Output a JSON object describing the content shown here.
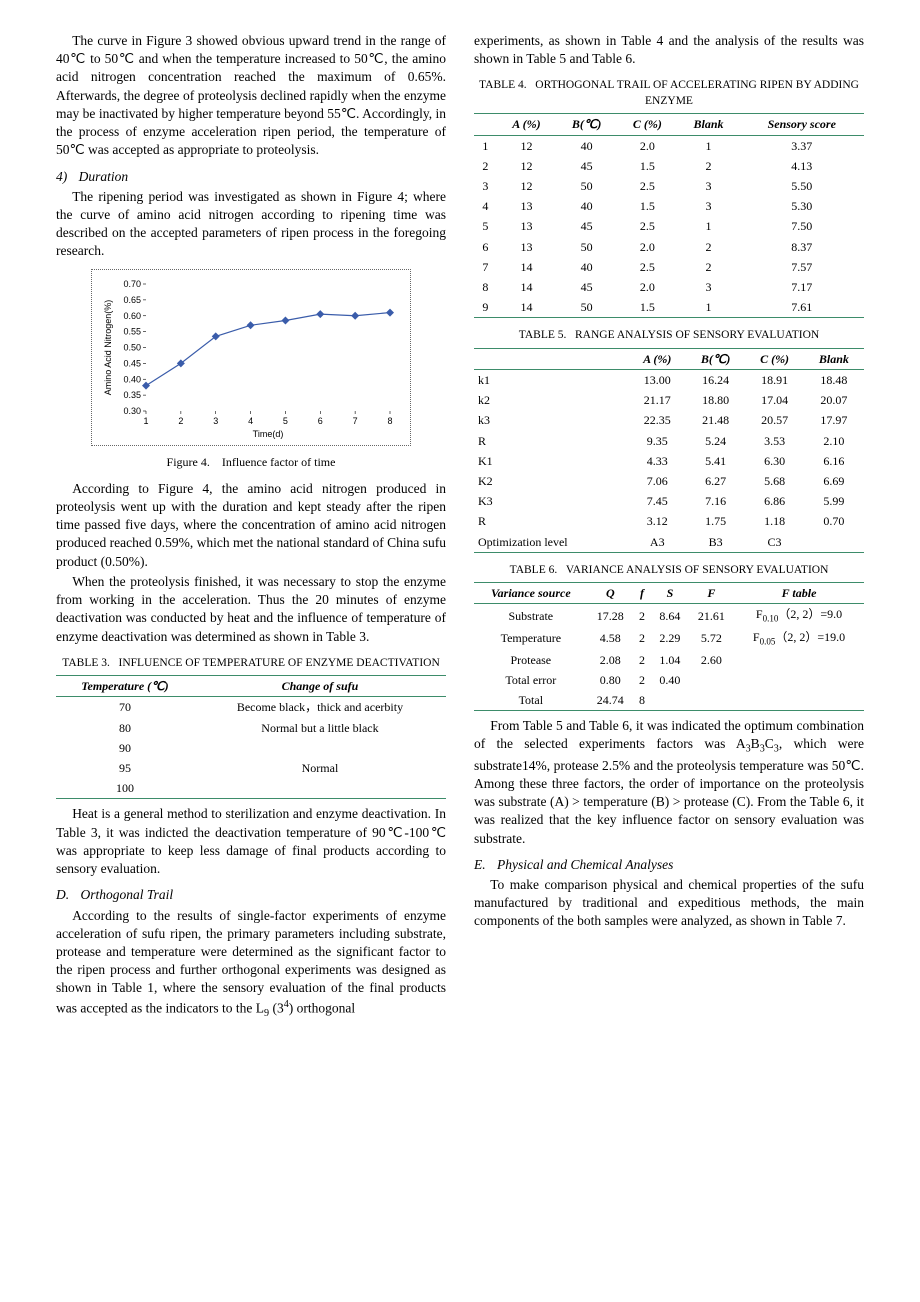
{
  "left": {
    "para1": "The curve in Figure 3 showed obvious upward trend in the range of 40℃ to 50℃ and when the temperature increased to 50℃, the amino acid nitrogen concentration reached the maximum of 0.65%. Afterwards, the degree of proteolysis declined rapidly when the enzyme may be inactivated by higher temperature beyond 55℃. Accordingly, in the process of enzyme acceleration ripen period, the temperature of 50℃ was accepted as appropriate to proteolysis.",
    "h4_num": "4)",
    "h4_text": "Duration",
    "para2": "The ripening period was investigated as shown in Figure 4; where the curve of amino acid nitrogen according to ripening time was described on the accepted parameters of ripen process in the foregoing research.",
    "fig4": {
      "type": "line",
      "ylabel": "Amino Acid Nitrogen(%)",
      "xlabel": "Time(d)",
      "ylabel_fontsize": 9,
      "xlabel_fontsize": 9,
      "tick_fontsize": 9,
      "x": [
        1,
        2,
        3,
        4,
        5,
        6,
        7,
        8
      ],
      "y": [
        0.38,
        0.45,
        0.535,
        0.57,
        0.585,
        0.605,
        0.6,
        0.61
      ],
      "xlim": [
        1,
        8
      ],
      "ylim": [
        0.3,
        0.7
      ],
      "ytick_step": 0.05,
      "xtick_step": 1,
      "line_color": "#3a5caa",
      "marker": "diamond",
      "marker_color": "#3a5caa",
      "marker_size": 4,
      "line_width": 1.2,
      "background_color": "#ffffff",
      "border_color": "#666666",
      "border_style": "dotted"
    },
    "fig4_caption_label": "Figure 4.",
    "fig4_caption_text": "Influence factor of time",
    "para3": "According to Figure 4, the amino acid nitrogen produced in proteolysis went up with the duration and kept steady after the ripen time passed five days, where the concentration of amino acid nitrogen produced reached 0.59%, which met the national standard of China sufu product (0.50%).",
    "para4": "When the proteolysis finished, it was necessary to stop the enzyme from working in the acceleration. Thus the 20 minutes of enzyme deactivation was conducted by heat and the influence of temperature of enzyme deactivation was determined as shown in Table 3.",
    "table3_caption_label": "TABLE 3.",
    "table3_caption_text": "INFLUENCE OF TEMPERATURE OF ENZYME DEACTIVATION",
    "table3": {
      "columns": [
        "Temperature (℃)",
        "Change of sufu"
      ],
      "rows": [
        [
          "70",
          "Become black，thick and acerbity"
        ],
        [
          "80",
          "Normal but a little black"
        ],
        [
          "90",
          ""
        ],
        [
          "95",
          "Normal"
        ],
        [
          "100",
          ""
        ]
      ],
      "border_color": "#3d8c6a"
    },
    "para5": "Heat is a general method to sterilization and enzyme deactivation. In Table 3, it was indicted the deactivation temperature of 90℃-100℃ was appropriate to keep less damage of final products according to sensory evaluation.",
    "hD_letter": "D.",
    "hD_text": "Orthogonal Trail",
    "para6_a": "According to the results of single-factor experiments of enzyme acceleration of sufu ripen, the primary parameters including substrate, protease and temperature were determined as the significant factor to the ripen process and further orthogonal experiments was designed as shown in Table 1, where the sensory evaluation of the final products was accepted as the indicators to the L",
    "para6_sub": "9",
    "para6_b": " (3",
    "para6_sup": "4",
    "para6_c": ") orthogonal"
  },
  "right": {
    "para_top": "experiments, as shown in Table 4 and the analysis of the results was shown in Table 5 and Table 6.",
    "table4_caption_label": "TABLE 4.",
    "table4_caption_text": "ORTHOGONAL TRAIL OF ACCELERATING RIPEN BY ADDING ENZYME",
    "table4": {
      "columns": [
        "",
        "A (%)",
        "B(℃)",
        "C (%)",
        "Blank",
        "Sensory score"
      ],
      "rows": [
        [
          "1",
          "12",
          "40",
          "2.0",
          "1",
          "3.37"
        ],
        [
          "2",
          "12",
          "45",
          "1.5",
          "2",
          "4.13"
        ],
        [
          "3",
          "12",
          "50",
          "2.5",
          "3",
          "5.50"
        ],
        [
          "4",
          "13",
          "40",
          "1.5",
          "3",
          "5.30"
        ],
        [
          "5",
          "13",
          "45",
          "2.5",
          "1",
          "7.50"
        ],
        [
          "6",
          "13",
          "50",
          "2.0",
          "2",
          "8.37"
        ],
        [
          "7",
          "14",
          "40",
          "2.5",
          "2",
          "7.57"
        ],
        [
          "8",
          "14",
          "45",
          "2.0",
          "3",
          "7.17"
        ],
        [
          "9",
          "14",
          "50",
          "1.5",
          "1",
          "7.61"
        ]
      ],
      "border_color": "#3d8c6a"
    },
    "table5_caption_label": "TABLE 5.",
    "table5_caption_text": "RANGE ANALYSIS OF SENSORY EVALUATION",
    "table5": {
      "columns": [
        "",
        "A (%)",
        "B(℃)",
        "C (%)",
        "Blank"
      ],
      "rows": [
        [
          "k1",
          "13.00",
          "16.24",
          "18.91",
          "18.48"
        ],
        [
          "k2",
          "21.17",
          "18.80",
          "17.04",
          "20.07"
        ],
        [
          "k3",
          "22.35",
          "21.48",
          "20.57",
          "17.97"
        ],
        [
          "R",
          "9.35",
          "5.24",
          "3.53",
          "2.10"
        ],
        [
          "K1",
          "4.33",
          "5.41",
          "6.30",
          "6.16"
        ],
        [
          "K2",
          "7.06",
          "6.27",
          "5.68",
          "6.69"
        ],
        [
          "K3",
          "7.45",
          "7.16",
          "6.86",
          "5.99"
        ],
        [
          "R",
          "3.12",
          "1.75",
          "1.18",
          "0.70"
        ],
        [
          "Optimization level",
          "A3",
          "B3",
          "C3",
          ""
        ]
      ],
      "border_color": "#3d8c6a"
    },
    "table6_caption_label": "TABLE 6.",
    "table6_caption_text": "VARIANCE ANALYSIS OF SENSORY EVALUATION",
    "table6": {
      "columns": [
        "Variance source",
        "Q",
        "f",
        "S",
        "F",
        "F table"
      ],
      "rows": [
        [
          "Substrate",
          "17.28",
          "2",
          "8.64",
          "21.61",
          "F0.10（2, 2）=9.0"
        ],
        [
          "Temperature",
          "4.58",
          "2",
          "2.29",
          "5.72",
          "F0.05（2, 2）=19.0"
        ],
        [
          "Protease",
          "2.08",
          "2",
          "1.04",
          "2.60",
          ""
        ],
        [
          "Total error",
          "0.80",
          "2",
          "0.40",
          "",
          ""
        ],
        [
          "Total",
          "24.74",
          "8",
          "",
          "",
          ""
        ]
      ],
      "border_color": "#3d8c6a"
    },
    "para_mid_a": "From Table 5 and Table 6, it was indicated the optimum combination of the selected experiments factors was A",
    "para_mid_sub1": "3",
    "para_mid_b": "B",
    "para_mid_sub2": "3",
    "para_mid_c": "C",
    "para_mid_sub3": "3",
    "para_mid_d": ", which were substrate14%, protease 2.5% and the proteolysis temperature was 50℃. Among these three factors, the order of importance on the proteolysis was substrate (A) > temperature (B) > protease (C). From the Table 6, it was realized that the key influence factor on sensory evaluation was substrate.",
    "hE_letter": "E.",
    "hE_text": "Physical and Chemical Analyses",
    "para_end": "To make comparison physical and chemical properties of the sufu manufactured by traditional and expeditious methods, the main components of the both samples were analyzed, as shown in Table 7."
  }
}
